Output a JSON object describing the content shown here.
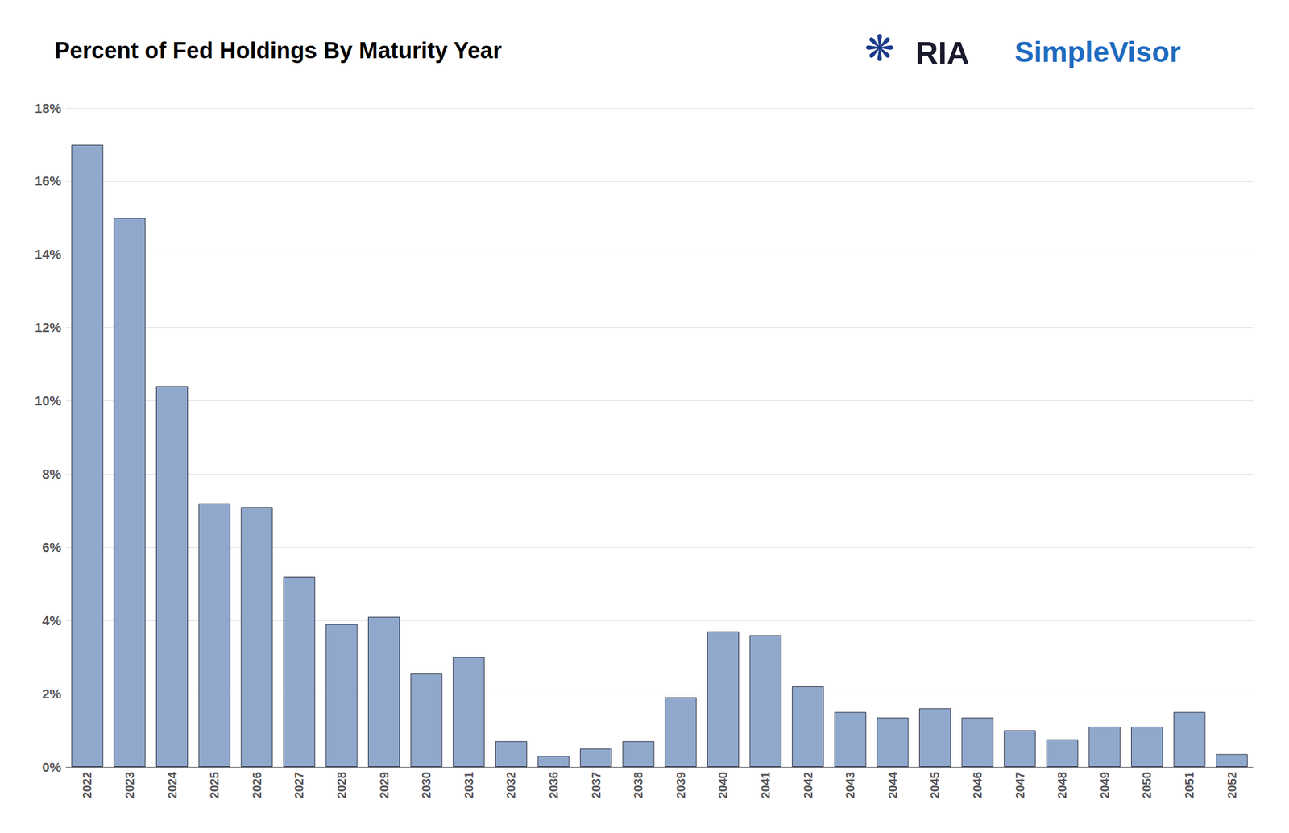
{
  "chart_data": {
    "type": "bar",
    "title": "Percent of Fed Holdings By Maturity Year",
    "categories": [
      "2022",
      "2023",
      "2024",
      "2025",
      "2026",
      "2027",
      "2028",
      "2029",
      "2030",
      "2031",
      "2032",
      "2036",
      "2037",
      "2038",
      "2039",
      "2040",
      "2041",
      "2042",
      "2043",
      "2044",
      "2045",
      "2046",
      "2047",
      "2048",
      "2049",
      "2050",
      "2051",
      "2052"
    ],
    "values": [
      17.0,
      15.0,
      10.4,
      7.2,
      7.1,
      5.2,
      3.9,
      4.1,
      2.55,
      3.0,
      0.7,
      0.3,
      0.5,
      0.7,
      1.9,
      3.7,
      3.6,
      2.2,
      1.5,
      1.35,
      1.6,
      1.35,
      1.0,
      0.75,
      1.1,
      1.1,
      1.5,
      0.35
    ],
    "color": "#8fa8cc",
    "ylim": [
      0,
      18
    ],
    "yticks": [
      {
        "value": 0,
        "label": "0%"
      },
      {
        "value": 2,
        "label": "2%"
      },
      {
        "value": 4,
        "label": "4%"
      },
      {
        "value": 6,
        "label": "6%"
      },
      {
        "value": 8,
        "label": "8%"
      },
      {
        "value": 10,
        "label": "10%"
      },
      {
        "value": 12,
        "label": "12%"
      },
      {
        "value": 14,
        "label": "14%"
      },
      {
        "value": 16,
        "label": "16%"
      },
      {
        "value": 18,
        "label": "18%"
      }
    ],
    "grid": true,
    "annotations": [
      {
        "text": "❋",
        "color": "#1a3a8a"
      },
      {
        "text": "RIA",
        "color": "#1a1a2e"
      },
      {
        "text": "SimpleVisor",
        "color": "#1e6bbf"
      }
    ]
  }
}
